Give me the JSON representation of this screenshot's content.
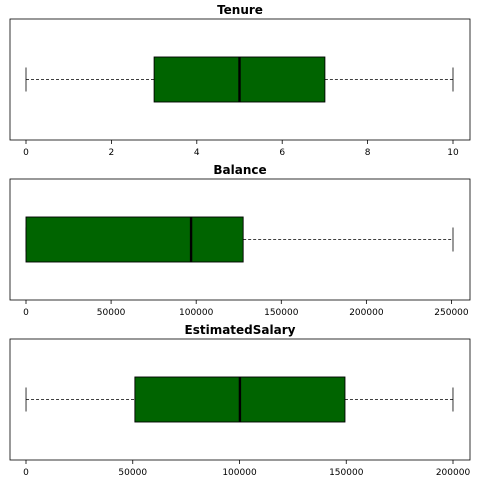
{
  "chart_data": [
    {
      "type": "box",
      "title": "Tenure",
      "xlim": [
        0,
        10
      ],
      "ticks": [
        0,
        2,
        4,
        6,
        8,
        10
      ],
      "tick_labels": [
        "0",
        "2",
        "4",
        "6",
        "8",
        "10"
      ],
      "box": {
        "min": 0,
        "q1": 3,
        "median": 5,
        "q3": 7,
        "max": 10
      },
      "box_color": "#006400"
    },
    {
      "type": "box",
      "title": "Balance",
      "xlim": [
        0,
        250898
      ],
      "ticks": [
        0,
        50000,
        100000,
        150000,
        200000,
        250000
      ],
      "tick_labels": [
        "0",
        "50000",
        "100000",
        "150000",
        "200000",
        "250000"
      ],
      "box": {
        "min": 0,
        "q1": 0,
        "median": 97000,
        "q3": 127600,
        "max": 250898
      },
      "box_color": "#006400"
    },
    {
      "type": "box",
      "title": "EstimatedSalary",
      "xlim": [
        0,
        200000
      ],
      "ticks": [
        0,
        50000,
        100000,
        150000,
        200000
      ],
      "tick_labels": [
        "0",
        "50000",
        "100000",
        "150000",
        "200000"
      ],
      "box": {
        "min": 11,
        "q1": 51000,
        "median": 100200,
        "q3": 149400,
        "max": 199992
      },
      "box_color": "#006400"
    }
  ]
}
